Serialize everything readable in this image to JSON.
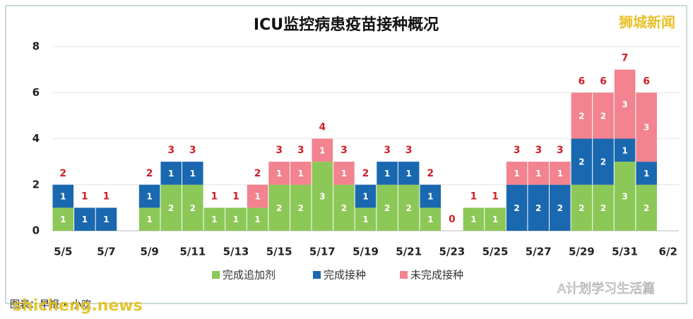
{
  "chart_data": {
    "type": "stacked_bar",
    "title": "ICU监控病患疫苗接种概况",
    "watermark": "狮城新闻",
    "source": "图表：早报 • 小欢",
    "site_watermark": "shicheng.news",
    "account_watermark": "A计划学习生活篇",
    "categories": [
      "5/5",
      null,
      "5/7",
      null,
      "5/9",
      null,
      "5/11",
      null,
      "5/13",
      null,
      "5/15",
      null,
      "5/17",
      null,
      "5/19",
      null,
      "5/21",
      null,
      "5/23",
      null,
      "5/25",
      null,
      "5/27",
      null,
      "5/29",
      null,
      "5/31",
      null,
      "6/2"
    ],
    "series": [
      {
        "name": "完成追加剂",
        "color": "#8cc857",
        "values": [
          1,
          0,
          0,
          null,
          1,
          2,
          2,
          1,
          1,
          1,
          2,
          2,
          3,
          2,
          1,
          2,
          2,
          1,
          0,
          1,
          1,
          0,
          0,
          0,
          2,
          2,
          3,
          2,
          null
        ]
      },
      {
        "name": "完成接种",
        "color": "#1a68b0",
        "values": [
          1,
          1,
          1,
          null,
          1,
          1,
          1,
          0,
          0,
          0,
          0,
          0,
          0,
          0,
          1,
          1,
          1,
          1,
          0,
          0,
          0,
          2,
          2,
          2,
          2,
          2,
          1,
          1,
          null
        ]
      },
      {
        "name": "未完成接种",
        "color": "#f2838f",
        "values": [
          0,
          0,
          0,
          null,
          0,
          0,
          0,
          0,
          0,
          1,
          1,
          1,
          1,
          1,
          0,
          0,
          0,
          0,
          0,
          0,
          0,
          1,
          1,
          1,
          2,
          2,
          3,
          3,
          null
        ]
      }
    ],
    "totals": [
      2,
      1,
      1,
      null,
      2,
      3,
      3,
      1,
      1,
      2,
      3,
      3,
      4,
      3,
      2,
      3,
      3,
      2,
      0,
      1,
      1,
      3,
      3,
      3,
      6,
      6,
      7,
      6,
      null
    ],
    "total_color": "#d0212a",
    "ylim": [
      0,
      8
    ],
    "yticks": [
      0,
      2,
      4,
      6,
      8
    ],
    "grid": true,
    "legend": "bottom"
  }
}
